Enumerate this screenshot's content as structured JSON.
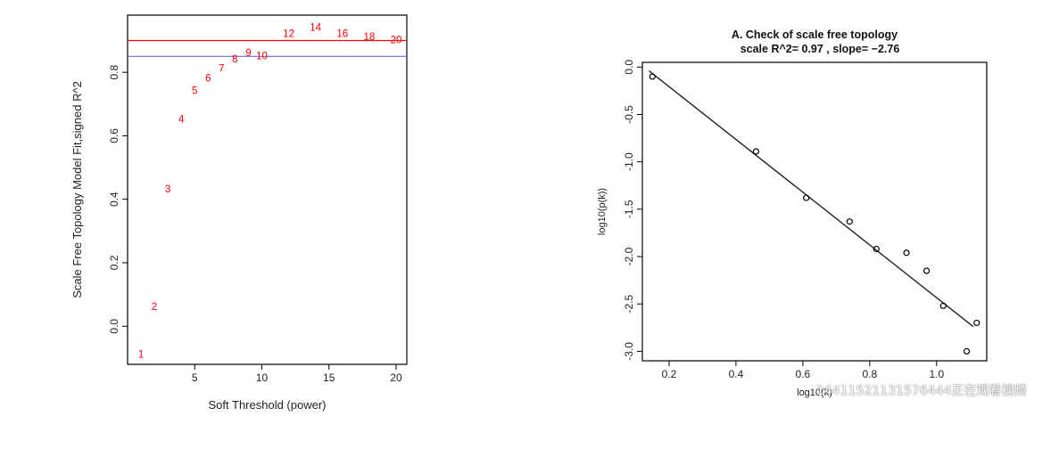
{
  "chart_data": [
    {
      "type": "scatter",
      "title": "",
      "xlabel": "Soft Threshold (power)",
      "ylabel": "Scale Free Topology Model Fit,signed R^2",
      "xlim": [
        0,
        20.8
      ],
      "ylim": [
        -0.12,
        0.98
      ],
      "x_ticks": [
        5,
        10,
        15,
        20
      ],
      "y_ticks": [
        0.0,
        0.2,
        0.4,
        0.6,
        0.8
      ],
      "x_tick_labels": [
        "5",
        "10",
        "15",
        "20"
      ],
      "y_tick_labels": [
        "0.0",
        "0.2",
        "0.4",
        "0.6",
        "0.8"
      ],
      "points": [
        {
          "x": 1,
          "y": -0.09,
          "label": "1"
        },
        {
          "x": 2,
          "y": 0.06,
          "label": "2"
        },
        {
          "x": 3,
          "y": 0.43,
          "label": "3"
        },
        {
          "x": 4,
          "y": 0.65,
          "label": "4"
        },
        {
          "x": 5,
          "y": 0.74,
          "label": "5"
        },
        {
          "x": 6,
          "y": 0.78,
          "label": "6"
        },
        {
          "x": 7,
          "y": 0.81,
          "label": "7"
        },
        {
          "x": 8,
          "y": 0.84,
          "label": "8"
        },
        {
          "x": 9,
          "y": 0.86,
          "label": "9"
        },
        {
          "x": 10,
          "y": 0.85,
          "label": "10"
        },
        {
          "x": 12,
          "y": 0.92,
          "label": "12"
        },
        {
          "x": 14,
          "y": 0.94,
          "label": "14"
        },
        {
          "x": 16,
          "y": 0.92,
          "label": "16"
        },
        {
          "x": 18,
          "y": 0.91,
          "label": "18"
        },
        {
          "x": 20,
          "y": 0.9,
          "label": "20"
        }
      ],
      "hlines": [
        {
          "y": 0.9,
          "color": "#ff0000"
        },
        {
          "y": 0.85,
          "color": "#6b6bd6"
        }
      ],
      "point_color": "#ff0000"
    },
    {
      "type": "scatter",
      "title": "A. Check of scale free topology",
      "subtitle": "scale R^2= 0.97 , slope= −2.76",
      "xlabel": "log10(k)",
      "ylabel": "log10(p(k))",
      "xlim": [
        0.12,
        1.15
      ],
      "ylim": [
        -3.1,
        0.05
      ],
      "x_ticks": [
        0.2,
        0.4,
        0.6,
        0.8,
        1.0
      ],
      "y_ticks": [
        0.0,
        -0.5,
        -1.0,
        -1.5,
        -2.0,
        -2.5,
        -3.0
      ],
      "x_tick_labels": [
        "0.2",
        "0.4",
        "0.6",
        "0.8",
        "1.0"
      ],
      "y_tick_labels": [
        "0.0",
        "-0.5",
        "-1.0",
        "-1.5",
        "-2.0",
        "-2.5",
        "-3.0"
      ],
      "points": [
        {
          "x": 0.15,
          "y": -0.1
        },
        {
          "x": 0.46,
          "y": -0.89
        },
        {
          "x": 0.61,
          "y": -1.38
        },
        {
          "x": 0.74,
          "y": -1.63
        },
        {
          "x": 0.82,
          "y": -1.92
        },
        {
          "x": 0.91,
          "y": -1.96
        },
        {
          "x": 0.97,
          "y": -2.15
        },
        {
          "x": 1.02,
          "y": -2.52
        },
        {
          "x": 1.09,
          "y": -3.0
        },
        {
          "x": 1.12,
          "y": -2.7
        }
      ],
      "fit_line": {
        "x": [
          0.14,
          1.11
        ],
        "y": [
          -0.04,
          -2.74
        ]
      },
      "point_color": "#000000"
    }
  ],
  "watermark": "14411521131576444正在观看视频"
}
